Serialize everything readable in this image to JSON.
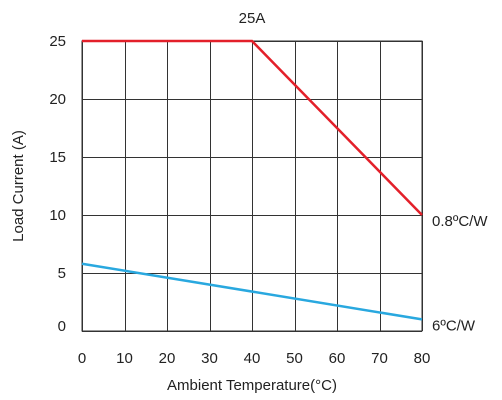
{
  "chart_data": {
    "type": "line",
    "title": "25A",
    "xlabel": "Ambient Temperature(°C)",
    "ylabel": "Load Current (A)",
    "xlim": [
      0,
      80
    ],
    "ylim": [
      0,
      25
    ],
    "x_ticks": [
      0,
      10,
      20,
      30,
      40,
      50,
      60,
      70,
      80
    ],
    "y_ticks": [
      0,
      5,
      10,
      15,
      20,
      25
    ],
    "x_tick_labels": [
      "0",
      "10",
      "20",
      "30",
      "40",
      "50",
      "60",
      "70",
      "80"
    ],
    "y_tick_labels": [
      "0",
      "5",
      "10",
      "15",
      "20",
      "25"
    ],
    "grid": true,
    "series": [
      {
        "name": "0.8ºC/W",
        "color": "#e3202a",
        "points": [
          [
            0,
            25
          ],
          [
            40,
            25
          ],
          [
            80,
            10
          ]
        ]
      },
      {
        "name": "6ºC/W",
        "color": "#29a8df",
        "points": [
          [
            0,
            5.8
          ],
          [
            80,
            1
          ]
        ]
      }
    ]
  }
}
